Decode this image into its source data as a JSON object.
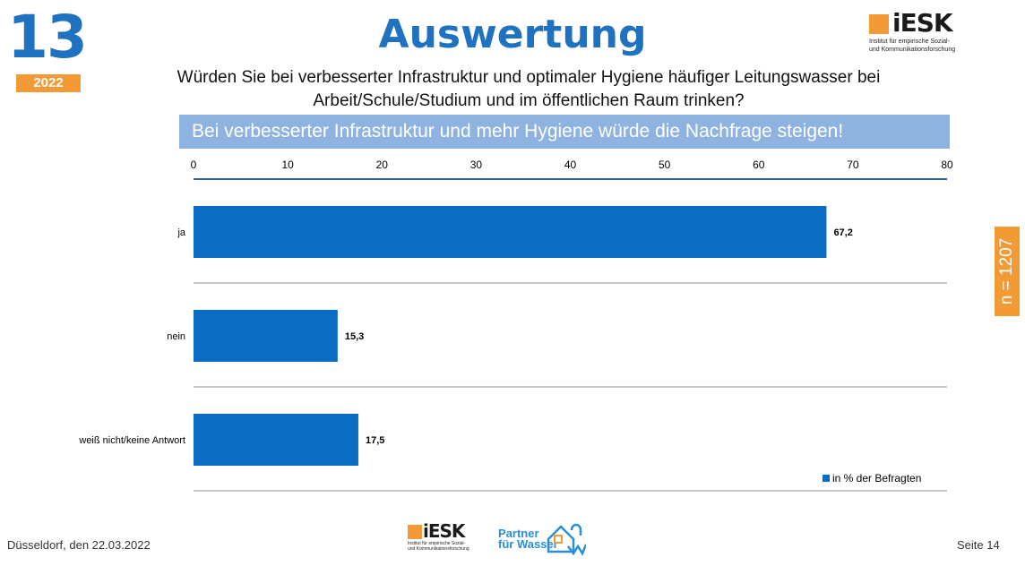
{
  "badge": {
    "number": "13",
    "year": "2022"
  },
  "title": "Auswertung",
  "logo": {
    "brand": "iESK",
    "subtitle": "Institut für empirische Sozial-\nund Kommunikationsforschung"
  },
  "question": "Würden Sie bei verbesserter Infrastruktur und optimaler Hygiene häufiger Leitungswasser bei Arbeit/Schule/Studium und im öffentlichen Raum trinken?",
  "banner": "Bei verbesserter Infrastruktur und mehr Hygiene würde die Nachfrage steigen!",
  "sample_size": "n = 1207",
  "footer": {
    "location_date": "Düsseldorf, den 22.03.2022",
    "page": "Seite 14",
    "partner_text": "Partner\nfür Wasser",
    "logo_brand": "iESK",
    "logo_subtitle": "Institut für empirische Sozial-\nund Kommunikationsforschung"
  },
  "colors": {
    "accent_blue": "#1f72c0",
    "bar": "#0b6cc4",
    "orange": "#f29a36",
    "banner": "#8fb3e1"
  },
  "chart_data": {
    "type": "bar",
    "orientation": "horizontal",
    "categories": [
      "ja",
      "nein",
      "weiß nicht/keine Antwort"
    ],
    "series": [
      {
        "name": "in % der Befragten",
        "values": [
          67.2,
          15.3,
          17.5
        ]
      }
    ],
    "value_labels": [
      "67,2",
      "15,3",
      "17,5"
    ],
    "xlim": [
      0,
      80
    ],
    "ticks": [
      0,
      10,
      20,
      30,
      40,
      50,
      60,
      70,
      80
    ],
    "axis_position": "top",
    "legend_position": "bottom-right",
    "grid": false
  }
}
